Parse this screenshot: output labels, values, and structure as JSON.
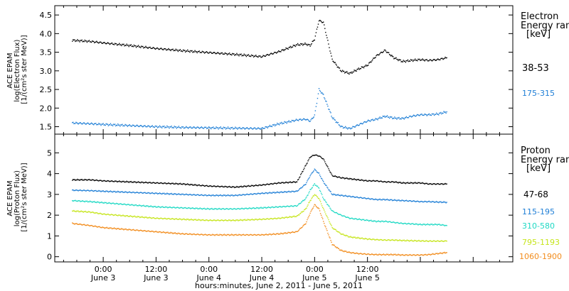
{
  "chart_data": [
    {
      "type": "scatter",
      "panel": "electron",
      "ylabel_lines": [
        "ACE EPAM",
        "log(Electron Flux)",
        "[1/(cm²s ster MeV)]"
      ],
      "legend_title_lines": [
        "Electron",
        "Energy ran"
      ],
      "legend_unit": "[keV]",
      "ylim": [
        1.3,
        4.75
      ],
      "yticks": [
        1.5,
        2.0,
        2.5,
        3.0,
        3.5,
        4.0,
        4.5
      ],
      "ytick_labels": [
        "1.5",
        "2.0",
        "2.5",
        "3.0",
        "3.5",
        "4.0",
        "4.5"
      ],
      "x_hours": [
        -7.0,
        -3.0,
        0.0,
        6.0,
        12.0,
        18.0,
        24.0,
        30.0,
        36.0,
        40.0,
        44.0,
        46.0,
        47.0,
        48.0,
        49.0,
        50.0,
        52.0,
        54.0,
        56.0,
        58.0,
        60.0,
        62.0,
        64.0,
        66.0,
        68.0,
        70.0,
        72.0,
        74.0,
        76.0,
        78.0
      ],
      "series": [
        {
          "name": "38-53",
          "color": "#000000",
          "values": [
            3.82,
            3.79,
            3.75,
            3.68,
            3.6,
            3.54,
            3.49,
            3.44,
            3.38,
            3.52,
            3.7,
            3.72,
            3.68,
            3.85,
            4.35,
            4.3,
            3.3,
            3.0,
            2.93,
            3.05,
            3.15,
            3.4,
            3.55,
            3.35,
            3.25,
            3.28,
            3.3,
            3.28,
            3.3,
            3.35
          ]
        },
        {
          "name": "175-315",
          "color": "#1f7fd6",
          "values": [
            1.6,
            1.58,
            1.56,
            1.53,
            1.5,
            1.48,
            1.47,
            1.46,
            1.45,
            1.58,
            1.68,
            1.7,
            1.65,
            1.8,
            2.5,
            2.35,
            1.75,
            1.5,
            1.45,
            1.55,
            1.65,
            1.7,
            1.78,
            1.73,
            1.72,
            1.78,
            1.82,
            1.82,
            1.84,
            1.9
          ]
        }
      ]
    },
    {
      "type": "scatter",
      "panel": "proton",
      "ylabel_lines": [
        "ACE EPAM",
        "log(Proton Flux)",
        "[1/(cm²s ster MeV)]"
      ],
      "legend_title_lines": [
        "Proton",
        "Energy ran"
      ],
      "legend_unit": "[keV]",
      "ylim": [
        -0.25,
        5.9
      ],
      "yticks": [
        0,
        1,
        2,
        3,
        4,
        5
      ],
      "ytick_labels": [
        "0",
        "1",
        "2",
        "3",
        "4",
        "5"
      ],
      "x_hours": [
        -7.0,
        -3.0,
        0.0,
        6.0,
        12.0,
        18.0,
        24.0,
        30.0,
        36.0,
        40.0,
        44.0,
        46.0,
        47.0,
        48.0,
        49.0,
        50.0,
        52.0,
        54.0,
        56.0,
        58.0,
        60.0,
        62.0,
        64.0,
        66.0,
        68.0,
        70.0,
        72.0,
        74.0,
        76.0,
        78.0
      ],
      "series": [
        {
          "name": "47-68",
          "color": "#000000",
          "values": [
            3.7,
            3.7,
            3.65,
            3.6,
            3.55,
            3.5,
            3.4,
            3.35,
            3.45,
            3.55,
            3.6,
            4.4,
            4.8,
            4.9,
            4.85,
            4.7,
            3.9,
            3.8,
            3.75,
            3.7,
            3.65,
            3.65,
            3.6,
            3.6,
            3.55,
            3.55,
            3.55,
            3.5,
            3.5,
            3.5
          ]
        },
        {
          "name": "115-195",
          "color": "#1f7fd6",
          "values": [
            3.2,
            3.18,
            3.15,
            3.1,
            3.05,
            3.0,
            2.95,
            2.95,
            3.05,
            3.1,
            3.15,
            3.5,
            3.9,
            4.2,
            4.0,
            3.6,
            3.0,
            2.95,
            2.9,
            2.85,
            2.8,
            2.75,
            2.75,
            2.72,
            2.7,
            2.68,
            2.65,
            2.65,
            2.63,
            2.62
          ]
        },
        {
          "name": "310-580",
          "color": "#1fd9c4",
          "values": [
            2.7,
            2.65,
            2.6,
            2.5,
            2.4,
            2.35,
            2.3,
            2.3,
            2.35,
            2.4,
            2.45,
            2.8,
            3.2,
            3.5,
            3.3,
            2.8,
            2.2,
            2.0,
            1.85,
            1.8,
            1.75,
            1.7,
            1.7,
            1.65,
            1.6,
            1.58,
            1.55,
            1.55,
            1.55,
            1.5
          ]
        },
        {
          "name": "795-1193",
          "color": "#c6e51c",
          "values": [
            2.2,
            2.15,
            2.05,
            1.95,
            1.85,
            1.8,
            1.75,
            1.75,
            1.8,
            1.85,
            1.95,
            2.3,
            2.7,
            3.0,
            2.8,
            2.3,
            1.4,
            1.1,
            0.95,
            0.9,
            0.85,
            0.82,
            0.8,
            0.8,
            0.78,
            0.77,
            0.76,
            0.75,
            0.75,
            0.75
          ]
        },
        {
          "name": "1060-1900",
          "color": "#f28c1c",
          "values": [
            1.6,
            1.5,
            1.4,
            1.3,
            1.2,
            1.1,
            1.05,
            1.05,
            1.05,
            1.1,
            1.2,
            1.6,
            2.1,
            2.5,
            2.3,
            1.7,
            0.6,
            0.3,
            0.2,
            0.15,
            0.12,
            0.1,
            0.1,
            0.1,
            0.08,
            0.08,
            0.08,
            0.1,
            0.15,
            0.2
          ]
        }
      ]
    }
  ],
  "x_axis": {
    "xlim": [
      -11.0,
      93.0
    ],
    "major_ticks": [
      0,
      12,
      24,
      36,
      48,
      60
    ],
    "tick_time_labels": [
      "0:00",
      "12:00",
      "0:00",
      "12:00",
      "0:00",
      "12:00"
    ],
    "tick_date_labels": [
      "June 3",
      "June 3",
      "June 4",
      "June 4",
      "June 5",
      "June 5"
    ],
    "xlabel": "hours:minutes, June  2, 2011 - June  5, 2011"
  }
}
